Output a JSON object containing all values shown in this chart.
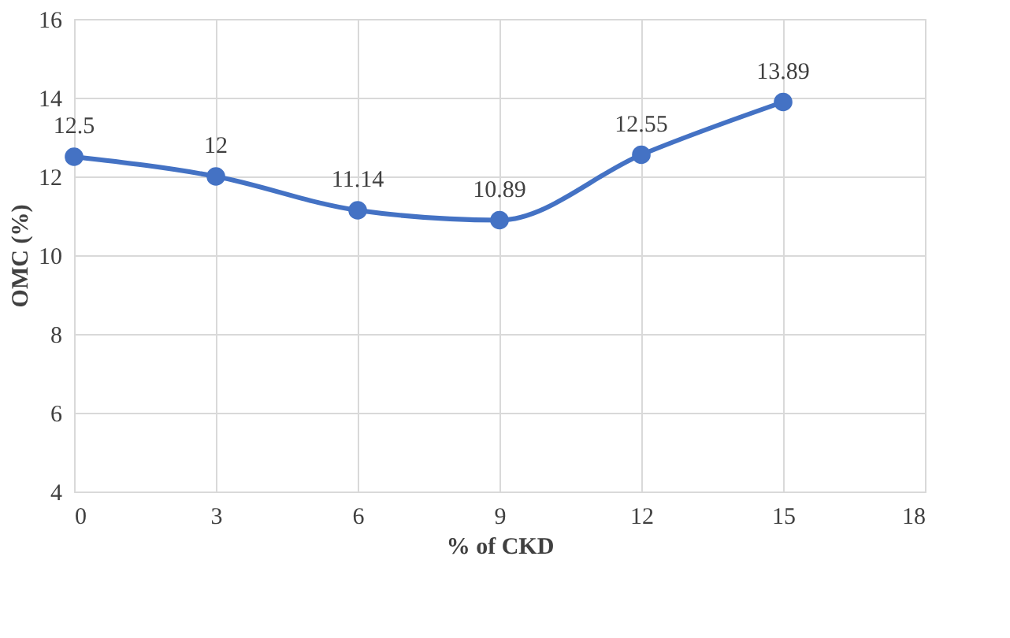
{
  "chart_data": {
    "type": "line",
    "xlabel": "% of CKD",
    "ylabel": "OMC (%)",
    "x": [
      0,
      3,
      6,
      9,
      12,
      15
    ],
    "series": [
      {
        "color": "#4472c4",
        "values": [
          12.5,
          12,
          11.14,
          10.89,
          12.55,
          13.89
        ]
      }
    ],
    "xlim": [
      0,
      18
    ],
    "xticks": [
      0,
      3,
      6,
      9,
      12,
      15,
      18
    ],
    "ylim": [
      4,
      16
    ],
    "yticks": [
      4,
      6,
      8,
      10,
      12,
      14,
      16
    ],
    "grid": true,
    "marker": "circle",
    "line_style": "solid",
    "data_labels": true
  }
}
